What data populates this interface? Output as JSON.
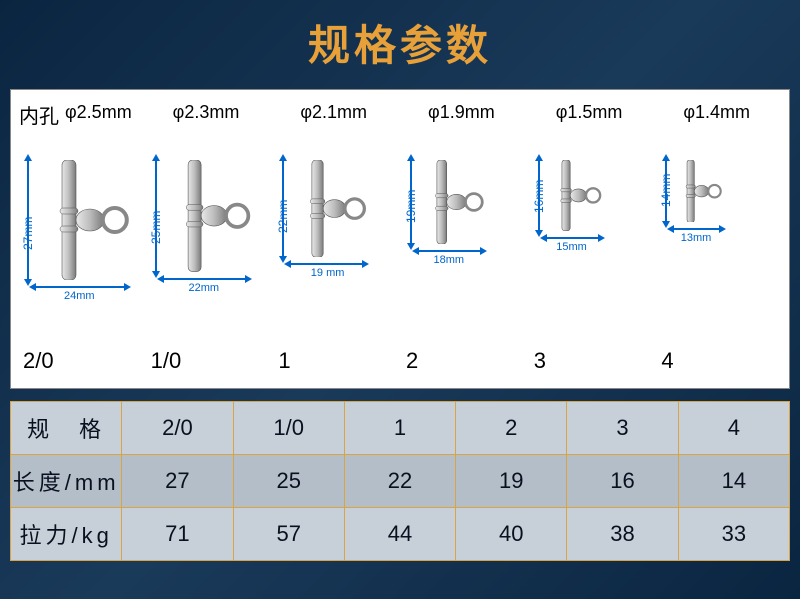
{
  "title": "规格参数",
  "title_color": "#e8a038",
  "background_gradient": [
    "#0a2540",
    "#1a3a5a",
    "#0a2540"
  ],
  "diagram": {
    "panel_bg": "#ffffff",
    "inner_hole_label": "内孔",
    "arrow_color": "#0066cc",
    "swivel_metal_colors": [
      "#e0e0e0",
      "#999999",
      "#666666"
    ],
    "items": [
      {
        "model": "2/0",
        "phi_mm": 2.5,
        "height_mm": 27,
        "width_mm": 24,
        "phi_text": "φ2.5mm",
        "h_text": "27mm",
        "w_text": "24mm",
        "scale": 1.0
      },
      {
        "model": "1/0",
        "phi_mm": 2.3,
        "height_mm": 25,
        "width_mm": 22,
        "phi_text": "φ2.3mm",
        "h_text": "25mm",
        "w_text": "22mm",
        "scale": 0.93
      },
      {
        "model": "1",
        "phi_mm": 2.1,
        "height_mm": 22,
        "width_mm": 19,
        "phi_text": "φ2.1mm",
        "h_text": "22mm",
        "w_text": "19 mm",
        "scale": 0.81
      },
      {
        "model": "2",
        "phi_mm": 1.9,
        "height_mm": 19,
        "width_mm": 18,
        "phi_text": "φ1.9mm",
        "h_text": "19mm",
        "w_text": "18mm",
        "scale": 0.7
      },
      {
        "model": "3",
        "phi_mm": 1.5,
        "height_mm": 16,
        "width_mm": 15,
        "phi_text": "φ1.5mm",
        "h_text": "16mm",
        "w_text": "15mm",
        "scale": 0.59
      },
      {
        "model": "4",
        "phi_mm": 1.4,
        "height_mm": 14,
        "width_mm": 13,
        "phi_text": "φ1.4mm",
        "h_text": "14mm",
        "w_text": "13mm",
        "scale": 0.52
      }
    ]
  },
  "spec_table": {
    "border_color": "#d9a441",
    "row_bg_a": "#c7d0d8",
    "row_bg_b": "#b4bec8",
    "text_color": "#0a1020",
    "rows": [
      {
        "label": "规　格",
        "values": [
          "2/0",
          "1/0",
          "1",
          "2",
          "3",
          "4"
        ]
      },
      {
        "label": "长度/mm",
        "values": [
          "27",
          "25",
          "22",
          "19",
          "16",
          "14"
        ]
      },
      {
        "label": "拉力/kg",
        "values": [
          "71",
          "57",
          "44",
          "40",
          "38",
          "33"
        ]
      }
    ]
  }
}
